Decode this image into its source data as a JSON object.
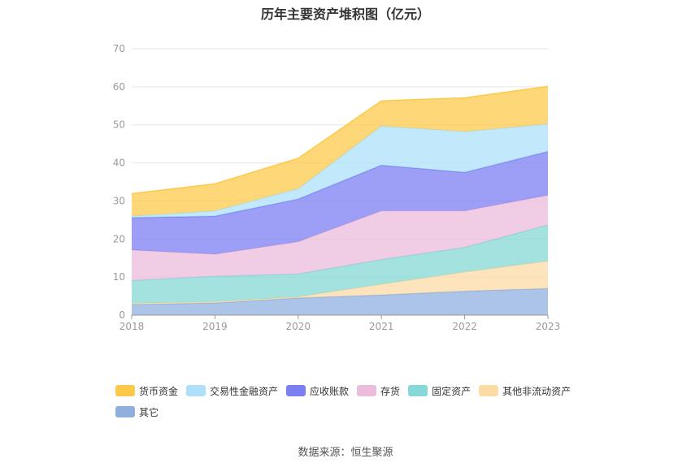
{
  "chart_data": {
    "type": "area",
    "stacked": true,
    "title": "历年主要资产堆积图（亿元）",
    "x": [
      "2018",
      "2019",
      "2020",
      "2021",
      "2022",
      "2023"
    ],
    "ylim": [
      0,
      70
    ],
    "yticks": [
      "0",
      "10",
      "20",
      "30",
      "40",
      "50",
      "60",
      "70"
    ],
    "grid": true,
    "legend_position": "bottom",
    "series": [
      {
        "name": "其它",
        "color": "#8fb0df",
        "values": [
          2.8,
          3.2,
          4.5,
          5.3,
          6.3,
          7.0
        ]
      },
      {
        "name": "其他非流动资产",
        "color": "#fddba5",
        "values": [
          0.3,
          0.3,
          0.3,
          2.8,
          5.0,
          7.2
        ]
      },
      {
        "name": "固定资产",
        "color": "#86d8d6",
        "values": [
          6.0,
          6.7,
          6.0,
          6.5,
          6.5,
          9.5
        ]
      },
      {
        "name": "存货",
        "color": "#ebbcdc",
        "values": [
          8.0,
          5.8,
          8.5,
          12.8,
          9.6,
          7.8
        ]
      },
      {
        "name": "应收账款",
        "color": "#7b7ff1",
        "values": [
          8.5,
          10.0,
          11.2,
          12.0,
          10.1,
          11.5
        ]
      },
      {
        "name": "交易性金融资产",
        "color": "#aee1f9",
        "values": [
          0.4,
          1.4,
          2.7,
          10.3,
          10.7,
          7.2
        ]
      },
      {
        "name": "货币资金",
        "color": "#fdc94b",
        "values": [
          5.9,
          7.1,
          8.0,
          6.6,
          8.9,
          9.9
        ]
      }
    ]
  },
  "legend_order": [
    6,
    5,
    4,
    3,
    2,
    1,
    0
  ],
  "source": "数据来源：恒生聚源"
}
